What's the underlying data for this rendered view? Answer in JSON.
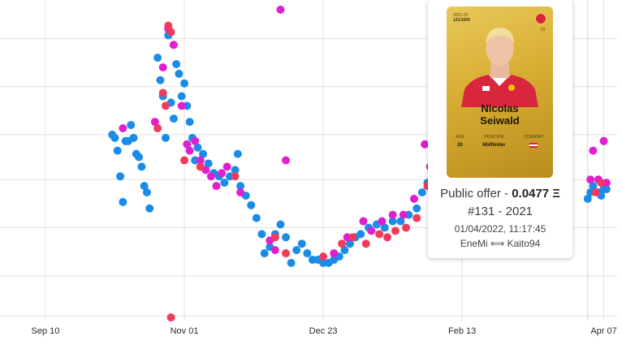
{
  "chart_data": {
    "type": "scatter",
    "x_tick_labels": [
      "Sep 10",
      "Nov 01",
      "Dec 23",
      "Feb 13",
      "Apr 07"
    ],
    "x_ticks": [
      "2021-09-10",
      "2021-11-01",
      "2021-12-23",
      "2022-02-13",
      "2022-04-07"
    ],
    "xlim": [
      "2021-08-24",
      "2022-04-12"
    ],
    "ylim": [
      0,
      1
    ],
    "y_tick_labels_visible": false,
    "grid": true,
    "series": [
      {
        "color": "#1a8ce8",
        "points": [
          [
            "2021-10-05",
            0.58
          ],
          [
            "2021-10-06",
            0.57
          ],
          [
            "2021-10-07",
            0.53
          ],
          [
            "2021-10-08",
            0.45
          ],
          [
            "2021-10-09",
            0.37
          ],
          [
            "2021-10-10",
            0.56
          ],
          [
            "2021-10-11",
            0.56
          ],
          [
            "2021-10-12",
            0.61
          ],
          [
            "2021-10-13",
            0.57
          ],
          [
            "2021-10-14",
            0.52
          ],
          [
            "2021-10-15",
            0.51
          ],
          [
            "2021-10-16",
            0.48
          ],
          [
            "2021-10-17",
            0.42
          ],
          [
            "2021-10-18",
            0.4
          ],
          [
            "2021-10-19",
            0.35
          ],
          [
            "2021-10-22",
            0.82
          ],
          [
            "2021-10-23",
            0.75
          ],
          [
            "2021-10-24",
            0.7
          ],
          [
            "2021-10-25",
            0.57
          ],
          [
            "2021-10-26",
            0.89
          ],
          [
            "2021-10-27",
            0.68
          ],
          [
            "2021-10-28",
            0.63
          ],
          [
            "2021-10-29",
            0.8
          ],
          [
            "2021-10-30",
            0.77
          ],
          [
            "2021-10-31",
            0.7
          ],
          [
            "2021-11-01",
            0.74
          ],
          [
            "2021-11-02",
            0.67
          ],
          [
            "2021-11-03",
            0.62
          ],
          [
            "2021-11-04",
            0.57
          ],
          [
            "2021-11-05",
            0.5
          ],
          [
            "2021-11-06",
            0.54
          ],
          [
            "2021-11-08",
            0.52
          ],
          [
            "2021-11-10",
            0.49
          ],
          [
            "2021-11-12",
            0.46
          ],
          [
            "2021-11-14",
            0.45
          ],
          [
            "2021-11-16",
            0.43
          ],
          [
            "2021-11-18",
            0.45
          ],
          [
            "2021-11-20",
            0.47
          ],
          [
            "2021-11-21",
            0.52
          ],
          [
            "2021-11-22",
            0.42
          ],
          [
            "2021-11-24",
            0.39
          ],
          [
            "2021-11-26",
            0.36
          ],
          [
            "2021-11-28",
            0.32
          ],
          [
            "2021-11-30",
            0.27
          ],
          [
            "2021-12-01",
            0.21
          ],
          [
            "2021-12-03",
            0.23
          ],
          [
            "2021-12-05",
            0.27
          ],
          [
            "2021-12-07",
            0.3
          ],
          [
            "2021-12-09",
            0.26
          ],
          [
            "2021-12-11",
            0.18
          ],
          [
            "2021-12-13",
            0.22
          ],
          [
            "2021-12-15",
            0.24
          ],
          [
            "2021-12-17",
            0.21
          ],
          [
            "2021-12-19",
            0.19
          ],
          [
            "2021-12-21",
            0.19
          ],
          [
            "2021-12-23",
            0.18
          ],
          [
            "2021-12-25",
            0.18
          ],
          [
            "2021-12-27",
            0.19
          ],
          [
            "2021-12-29",
            0.2
          ],
          [
            "2021-12-31",
            0.22
          ],
          [
            "2022-01-02",
            0.24
          ],
          [
            "2022-01-04",
            0.26
          ],
          [
            "2022-01-06",
            0.27
          ],
          [
            "2022-01-09",
            0.29
          ],
          [
            "2022-01-12",
            0.3
          ],
          [
            "2022-01-15",
            0.29
          ],
          [
            "2022-01-18",
            0.31
          ],
          [
            "2022-01-21",
            0.31
          ],
          [
            "2022-01-24",
            0.33
          ],
          [
            "2022-01-27",
            0.35
          ],
          [
            "2022-01-29",
            0.4
          ],
          [
            "2022-01-31",
            0.43
          ],
          [
            "2022-04-01",
            0.38
          ],
          [
            "2022-04-02",
            0.4
          ],
          [
            "2022-04-03",
            0.42
          ],
          [
            "2022-04-05",
            0.4
          ],
          [
            "2022-04-06",
            0.39
          ],
          [
            "2022-04-07",
            0.41
          ],
          [
            "2022-04-08",
            0.41
          ]
        ]
      },
      {
        "color": "#e01fd0",
        "points": [
          [
            "2021-10-09",
            0.6
          ],
          [
            "2021-10-21",
            0.62
          ],
          [
            "2021-10-24",
            0.79
          ],
          [
            "2021-10-26",
            0.91
          ],
          [
            "2021-10-28",
            0.86
          ],
          [
            "2021-10-31",
            0.67
          ],
          [
            "2021-11-02",
            0.55
          ],
          [
            "2021-11-03",
            0.53
          ],
          [
            "2021-11-05",
            0.56
          ],
          [
            "2021-11-07",
            0.5
          ],
          [
            "2021-11-09",
            0.47
          ],
          [
            "2021-11-11",
            0.45
          ],
          [
            "2021-11-13",
            0.42
          ],
          [
            "2021-11-15",
            0.46
          ],
          [
            "2021-11-17",
            0.48
          ],
          [
            "2021-11-22",
            0.4
          ],
          [
            "2021-12-03",
            0.25
          ],
          [
            "2021-12-05",
            0.22
          ],
          [
            "2021-12-07",
            0.97
          ],
          [
            "2021-12-09",
            0.5
          ],
          [
            "2021-12-27",
            0.21
          ],
          [
            "2022-01-01",
            0.26
          ],
          [
            "2022-01-07",
            0.31
          ],
          [
            "2022-01-10",
            0.28
          ],
          [
            "2022-01-14",
            0.31
          ],
          [
            "2022-01-18",
            0.33
          ],
          [
            "2022-01-22",
            0.33
          ],
          [
            "2022-01-26",
            0.38
          ],
          [
            "2022-01-30",
            0.55
          ],
          [
            "2022-02-01",
            0.48
          ],
          [
            "2022-02-03",
            0.39
          ],
          [
            "2022-02-05",
            0.38
          ],
          [
            "2022-04-02",
            0.44
          ],
          [
            "2022-04-03",
            0.53
          ],
          [
            "2022-04-05",
            0.44
          ],
          [
            "2022-04-07",
            0.56
          ],
          [
            "2022-04-08",
            0.43
          ]
        ]
      },
      {
        "color": "#f23a5c",
        "points": [
          [
            "2021-10-22",
            0.6
          ],
          [
            "2021-10-24",
            0.71
          ],
          [
            "2021-10-25",
            0.67
          ],
          [
            "2021-10-26",
            0.92
          ],
          [
            "2021-10-27",
            0.9
          ],
          [
            "2021-10-27",
            0.01
          ],
          [
            "2021-11-01",
            0.5
          ],
          [
            "2021-11-07",
            0.48
          ],
          [
            "2021-11-20",
            0.45
          ],
          [
            "2021-12-05",
            0.26
          ],
          [
            "2021-12-09",
            0.21
          ],
          [
            "2021-12-23",
            0.2
          ],
          [
            "2021-12-30",
            0.24
          ],
          [
            "2022-01-03",
            0.26
          ],
          [
            "2022-01-08",
            0.24
          ],
          [
            "2022-01-13",
            0.27
          ],
          [
            "2022-01-16",
            0.26
          ],
          [
            "2022-01-19",
            0.28
          ],
          [
            "2022-01-23",
            0.29
          ],
          [
            "2022-01-27",
            0.32
          ],
          [
            "2022-01-31",
            0.42
          ],
          [
            "2022-02-02",
            0.4
          ],
          [
            "2022-04-04",
            0.4
          ],
          [
            "2022-04-06",
            0.43
          ]
        ]
      }
    ],
    "highlight_x": "2022-04-01"
  },
  "tooltip": {
    "card": {
      "season": "2021-22",
      "serial_small": "131/1000",
      "card_number": "13",
      "player_first": "Nicolas",
      "player_last": "Seiwald",
      "age_label": "AGE",
      "age": "20",
      "position_label": "POSITION",
      "position": "Midfielder",
      "country_label": "COUNTRY",
      "jersey_color": "#d8263d",
      "club_color": "#d9243b"
    },
    "offer_prefix": "Public offer - ",
    "offer_value": "0.0477 Ξ",
    "serial": "#131 - 2021",
    "datetime": "01/04/2022, 11:17:45",
    "trade": "EneMi ⟺ Kaito94"
  }
}
